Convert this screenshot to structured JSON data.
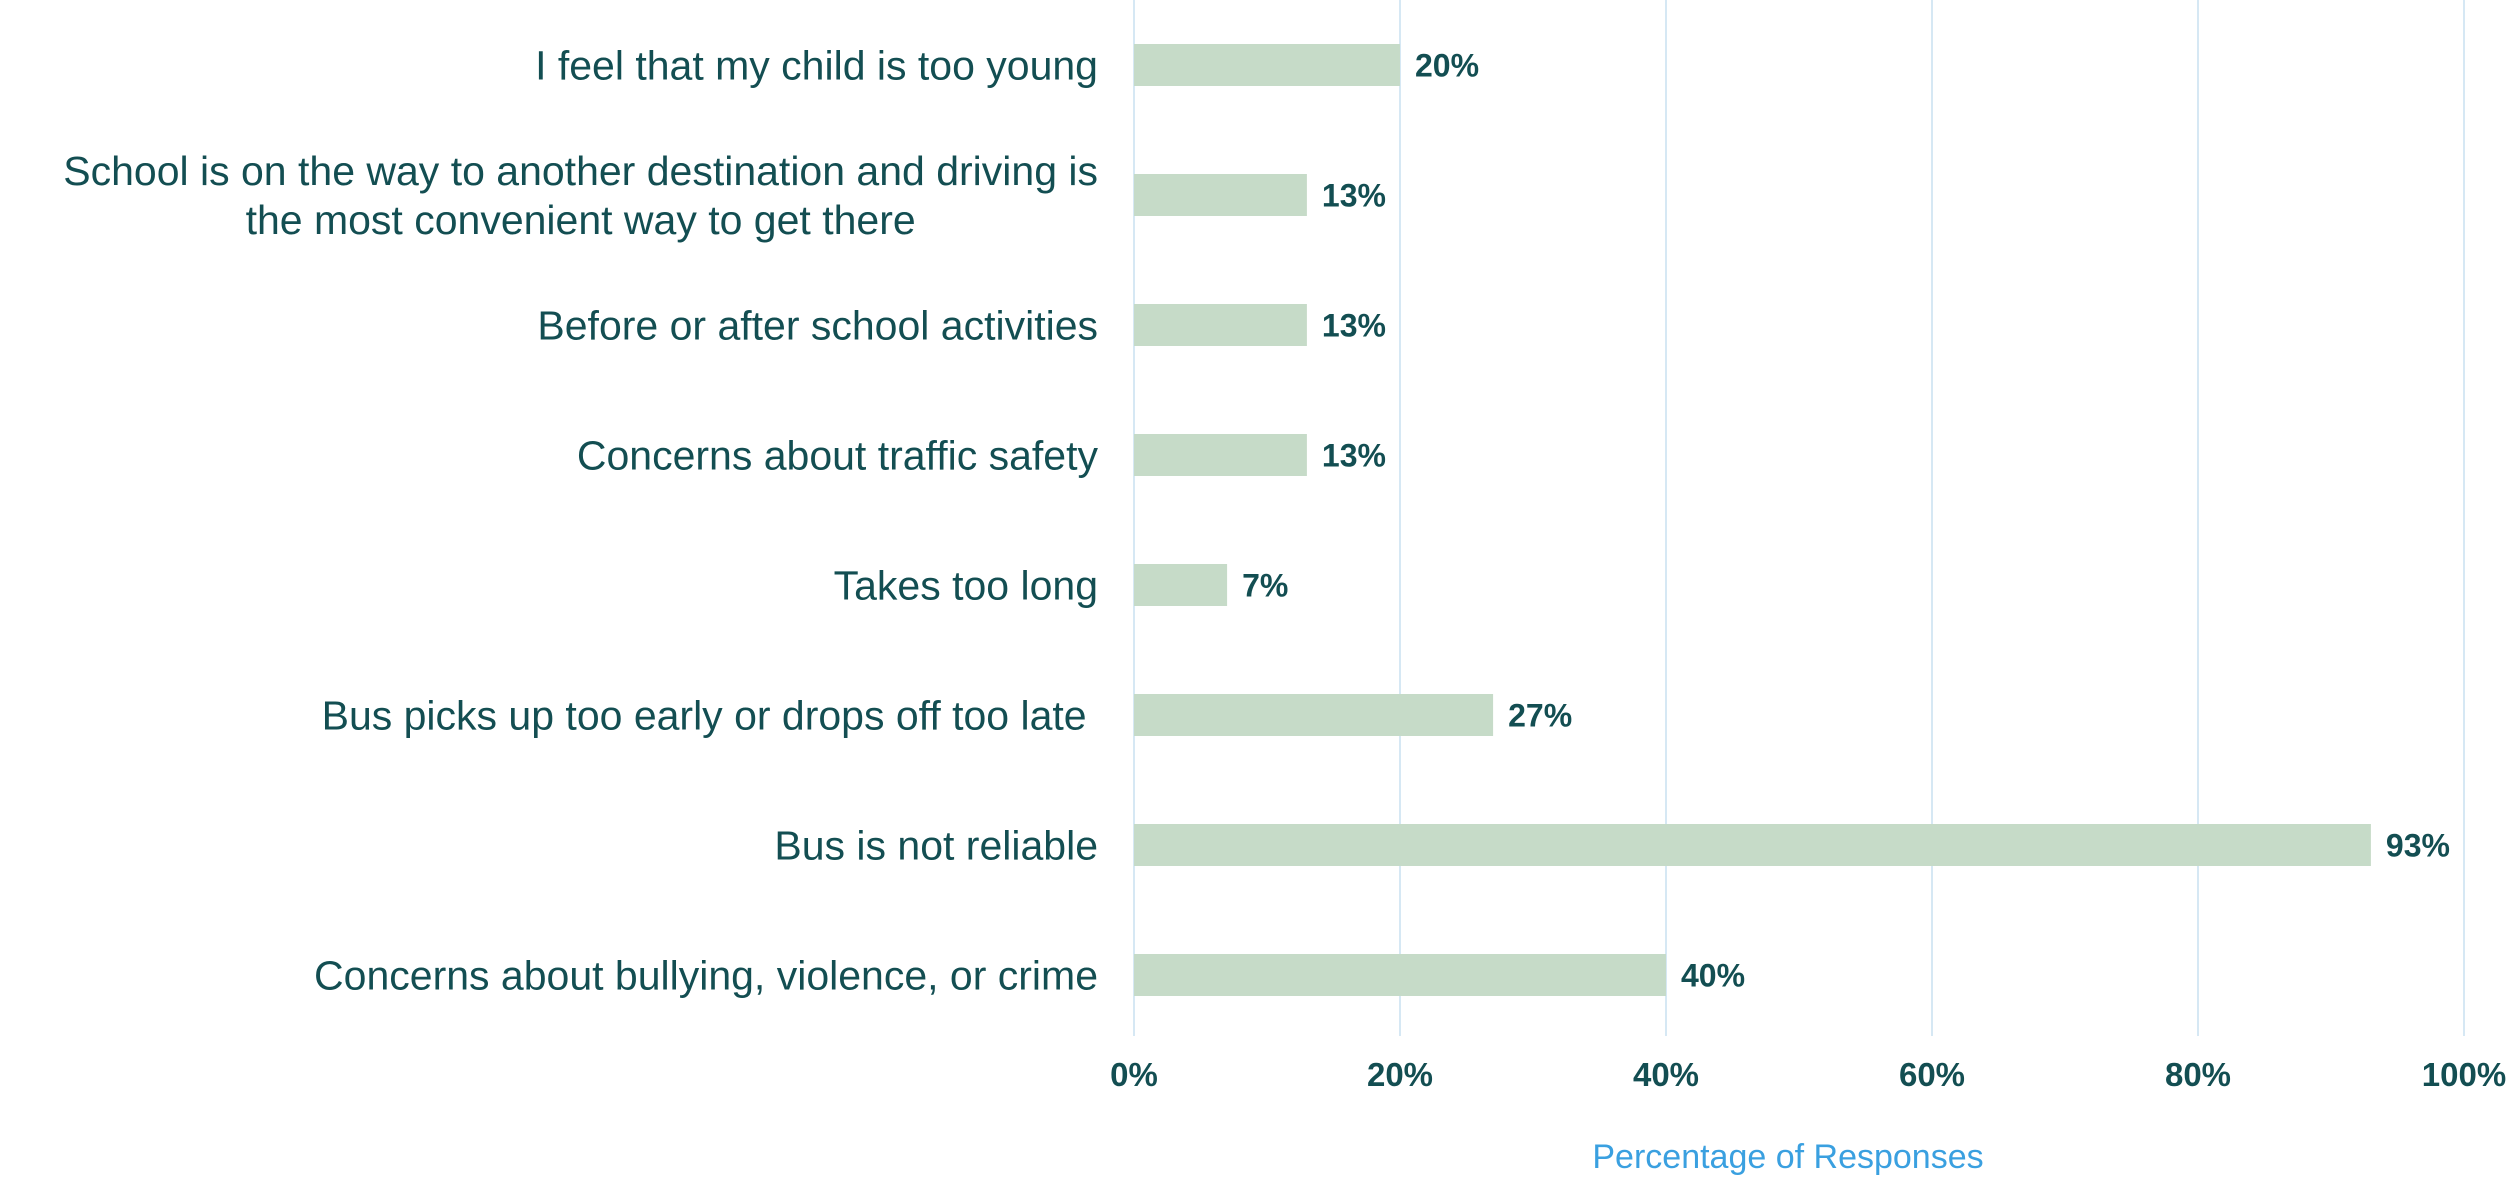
{
  "colors": {
    "bar": "#c6dbc8",
    "label_text": "#134e52",
    "gridline": "#d6e8f4",
    "axis_title": "#3aa0e0"
  },
  "chart_data": {
    "type": "bar",
    "orientation": "horizontal",
    "categories": [
      [
        "I feel that my child is too young"
      ],
      [
        "School is on the way to another destination and driving is",
        "the most convenient way to get there"
      ],
      [
        "Before or after school activities"
      ],
      [
        "Concerns about traffic safety"
      ],
      [
        "Takes too long"
      ],
      [
        "Bus picks up too early or drops off too late "
      ],
      [
        "Bus is not reliable"
      ],
      [
        "Concerns about bullying, violence, or crime"
      ]
    ],
    "values": [
      20,
      13,
      13,
      13,
      7,
      27,
      93,
      40
    ],
    "data_labels": [
      "20%",
      "13%",
      "13%",
      "13%",
      "7%",
      "27%",
      "93%",
      "40%"
    ],
    "xlim": [
      0,
      100
    ],
    "xticks": [
      0,
      20,
      40,
      60,
      80,
      100
    ],
    "xtick_labels": [
      "0%",
      "20%",
      "40%",
      "60%",
      "80%",
      "100%"
    ],
    "xlabel": "Percentage of Responses",
    "ylabel": "",
    "title": "",
    "grid": true,
    "legend": "none"
  }
}
